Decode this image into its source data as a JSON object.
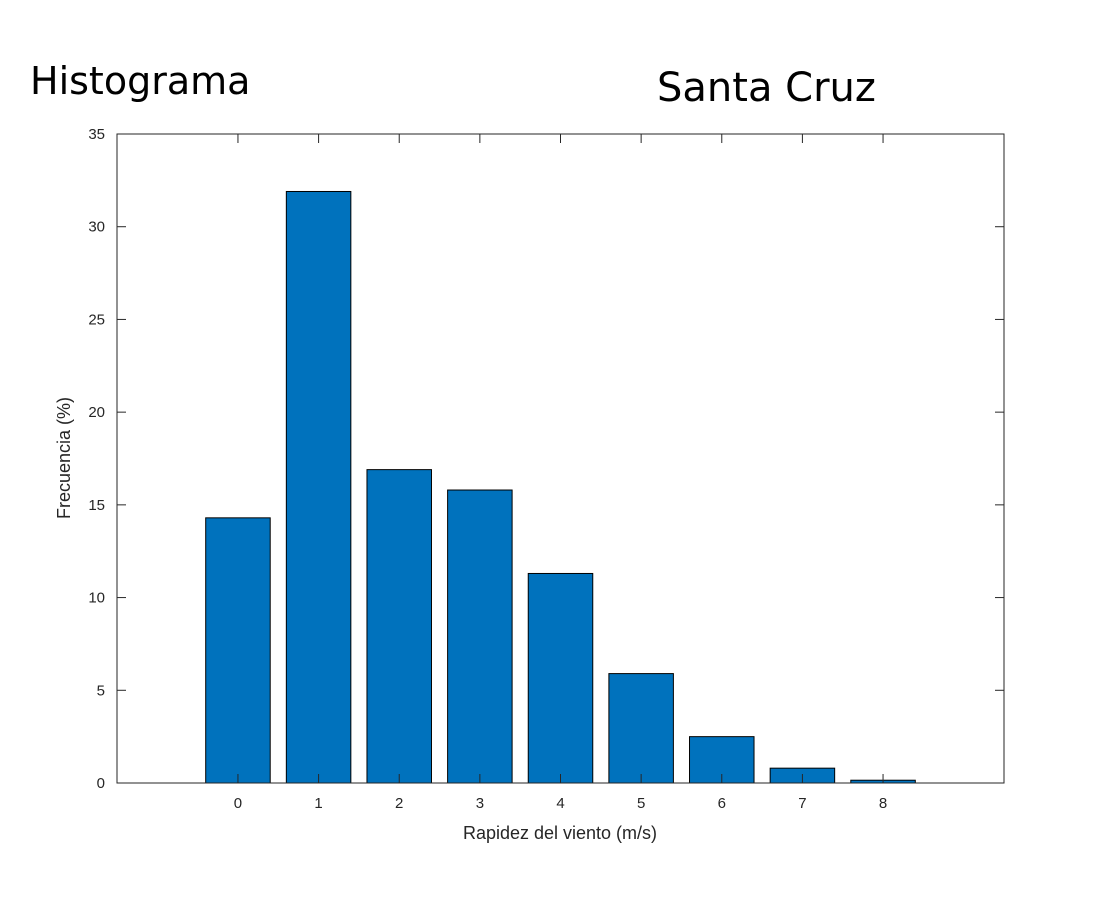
{
  "headings": {
    "left": "Histograma",
    "right": "Santa Cruz"
  },
  "chart_data": {
    "type": "bar",
    "title": "",
    "xlabel": "Rapidez del viento (m/s)",
    "ylabel": "Frecuencia (%)",
    "categories": [
      "0",
      "1",
      "2",
      "3",
      "4",
      "5",
      "6",
      "7",
      "8"
    ],
    "x": [
      0,
      1,
      2,
      3,
      4,
      5,
      6,
      7,
      8
    ],
    "values": [
      14.3,
      31.9,
      16.9,
      15.8,
      11.3,
      5.9,
      2.5,
      0.8,
      0.15
    ],
    "xlim": [
      -1.5,
      9.5
    ],
    "ylim": [
      0,
      35
    ],
    "yticks": [
      0,
      5,
      10,
      15,
      20,
      25,
      30,
      35
    ],
    "grid": false,
    "bar_color": "#0072bd",
    "axis_color": "#262626"
  }
}
